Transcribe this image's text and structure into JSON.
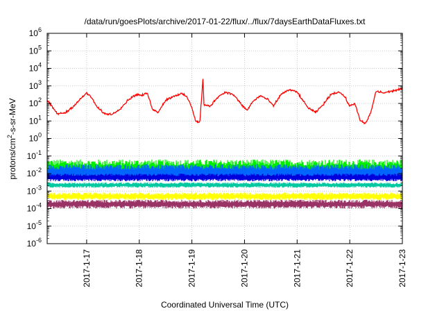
{
  "chart_data": {
    "type": "line",
    "title": "/data/run/goesPlots/archive/2017-01-22/flux/../flux/7daysEarthDataFluxes.txt",
    "xlabel": "Coordinated Universal Time (UTC)",
    "ylabel": "protons/cm²-s-sr-MeV",
    "ylabel_parts": {
      "pre": "protons/cm",
      "sup": "2",
      "post": "-s-sr-MeV"
    },
    "yscale": "log",
    "ylim_exp": [
      -6,
      6
    ],
    "y_ticks": [
      {
        "base": "10",
        "exp": "-6"
      },
      {
        "base": "10",
        "exp": "-5"
      },
      {
        "base": "10",
        "exp": "-4"
      },
      {
        "base": "10",
        "exp": "-3"
      },
      {
        "base": "10",
        "exp": "-2"
      },
      {
        "base": "10",
        "exp": "-1"
      },
      {
        "base": "10",
        "exp": "0"
      },
      {
        "base": "10",
        "exp": "1"
      },
      {
        "base": "10",
        "exp": "2"
      },
      {
        "base": "10",
        "exp": "3"
      },
      {
        "base": "10",
        "exp": "4"
      },
      {
        "base": "10",
        "exp": "5"
      },
      {
        "base": "10",
        "exp": "6"
      }
    ],
    "x_range_days": [
      0,
      6.75
    ],
    "x_ticks": [
      {
        "label": "2017-1-17",
        "day": 0.75
      },
      {
        "label": "2017-1-18",
        "day": 1.75
      },
      {
        "label": "2017-1-19",
        "day": 2.75
      },
      {
        "label": "2017-1-20",
        "day": 3.75
      },
      {
        "label": "2017-1-21",
        "day": 4.75
      },
      {
        "label": "2017-1-22",
        "day": 5.75
      },
      {
        "label": "2017-1-23",
        "day": 6.75
      }
    ],
    "grid": true,
    "series": [
      {
        "color": "#ff0000",
        "kind": "line",
        "points": [
          [
            0.0,
            150
          ],
          [
            0.1,
            60
          ],
          [
            0.2,
            25
          ],
          [
            0.35,
            30
          ],
          [
            0.5,
            70
          ],
          [
            0.65,
            200
          ],
          [
            0.75,
            400
          ],
          [
            0.85,
            200
          ],
          [
            0.95,
            60
          ],
          [
            1.1,
            25
          ],
          [
            1.25,
            25
          ],
          [
            1.4,
            55
          ],
          [
            1.55,
            170
          ],
          [
            1.7,
            330
          ],
          [
            1.8,
            280
          ],
          [
            1.9,
            400
          ],
          [
            2.0,
            50
          ],
          [
            2.1,
            30
          ],
          [
            2.25,
            150
          ],
          [
            2.4,
            260
          ],
          [
            2.55,
            360
          ],
          [
            2.65,
            250
          ],
          [
            2.75,
            60
          ],
          [
            2.82,
            10
          ],
          [
            2.9,
            8
          ],
          [
            2.96,
            2500
          ],
          [
            2.98,
            80
          ],
          [
            3.1,
            70
          ],
          [
            3.25,
            250
          ],
          [
            3.4,
            450
          ],
          [
            3.55,
            300
          ],
          [
            3.7,
            80
          ],
          [
            3.8,
            40
          ],
          [
            3.9,
            120
          ],
          [
            4.05,
            280
          ],
          [
            4.2,
            160
          ],
          [
            4.3,
            70
          ],
          [
            4.45,
            350
          ],
          [
            4.6,
            600
          ],
          [
            4.75,
            450
          ],
          [
            4.85,
            160
          ],
          [
            4.95,
            60
          ],
          [
            5.1,
            30
          ],
          [
            5.25,
            90
          ],
          [
            5.4,
            350
          ],
          [
            5.55,
            450
          ],
          [
            5.65,
            250
          ],
          [
            5.75,
            70
          ],
          [
            5.85,
            100
          ],
          [
            5.95,
            10
          ],
          [
            6.05,
            7
          ],
          [
            6.15,
            30
          ],
          [
            6.25,
            500
          ],
          [
            6.4,
            400
          ],
          [
            6.55,
            500
          ],
          [
            6.75,
            700
          ]
        ],
        "noise_dex": 0.09
      },
      {
        "color": "#00ee00",
        "kind": "band",
        "center": 0.018,
        "spread_dex": 0.55
      },
      {
        "color": "#0066ff",
        "kind": "band",
        "center": 0.012,
        "spread_dex": 0.45
      },
      {
        "color": "#00c8a0",
        "kind": "band",
        "center": 0.0022,
        "spread_dex": 0.15
      },
      {
        "color": "#0000dd",
        "kind": "band",
        "center": 0.006,
        "spread_dex": 0.22
      },
      {
        "color": "#ffff00",
        "kind": "band",
        "center": 0.0005,
        "spread_dex": 0.22
      },
      {
        "color": "#993366",
        "kind": "band",
        "center": 0.00018,
        "spread_dex": 0.25
      }
    ]
  }
}
